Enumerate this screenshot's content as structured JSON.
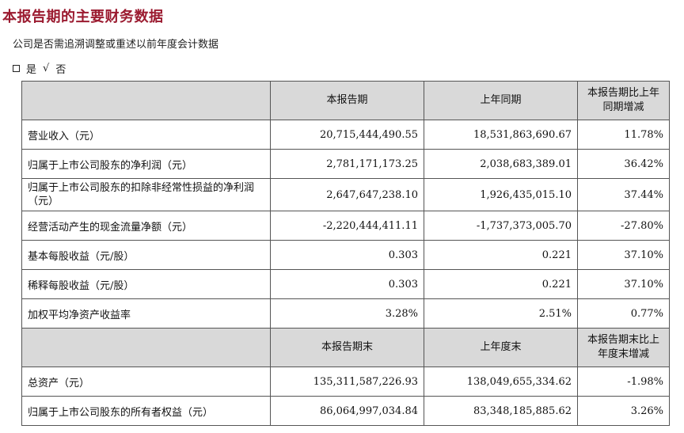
{
  "title": "本报告期的主要财务数据",
  "subtitle": "公司是否需追溯调整或重述以前年度会计数据",
  "choice": {
    "yes": "是",
    "check": "√",
    "no": "否"
  },
  "header1": {
    "col2": "本报告期",
    "col3": "上年同期",
    "col4": "本报告期比上年同期增减"
  },
  "rows1": [
    {
      "label": "营业收入（元）",
      "v1": "20,715,444,490.55",
      "v2": "18,531,863,690.67",
      "v3": "11.78%"
    },
    {
      "label": "归属于上市公司股东的净利润（元）",
      "v1": "2,781,171,173.25",
      "v2": "2,038,683,389.01",
      "v3": "36.42%"
    },
    {
      "label": "归属于上市公司股东的扣除非经常性损益的净利润（元）",
      "v1": "2,647,647,238.10",
      "v2": "1,926,435,015.10",
      "v3": "37.44%"
    },
    {
      "label": "经营活动产生的现金流量净额（元）",
      "v1": "-2,220,444,411.11",
      "v2": "-1,737,373,005.70",
      "v3": "-27.80%"
    },
    {
      "label": "基本每股收益（元/股）",
      "v1": "0.303",
      "v2": "0.221",
      "v3": "37.10%"
    },
    {
      "label": "稀释每股收益（元/股）",
      "v1": "0.303",
      "v2": "0.221",
      "v3": "37.10%"
    },
    {
      "label": "加权平均净资产收益率",
      "v1": "3.28%",
      "v2": "2.51%",
      "v3": "0.77%"
    }
  ],
  "header2": {
    "col2": "本报告期末",
    "col3": "上年度末",
    "col4": "本报告期末比上年度末增减"
  },
  "rows2": [
    {
      "label": "总资产（元）",
      "v1": "135,311,587,226.93",
      "v2": "138,049,655,334.62",
      "v3": "-1.98%"
    },
    {
      "label": "归属于上市公司股东的所有者权益（元）",
      "v1": "86,064,997,034.84",
      "v2": "83,348,185,885.62",
      "v3": "3.26%"
    }
  ]
}
